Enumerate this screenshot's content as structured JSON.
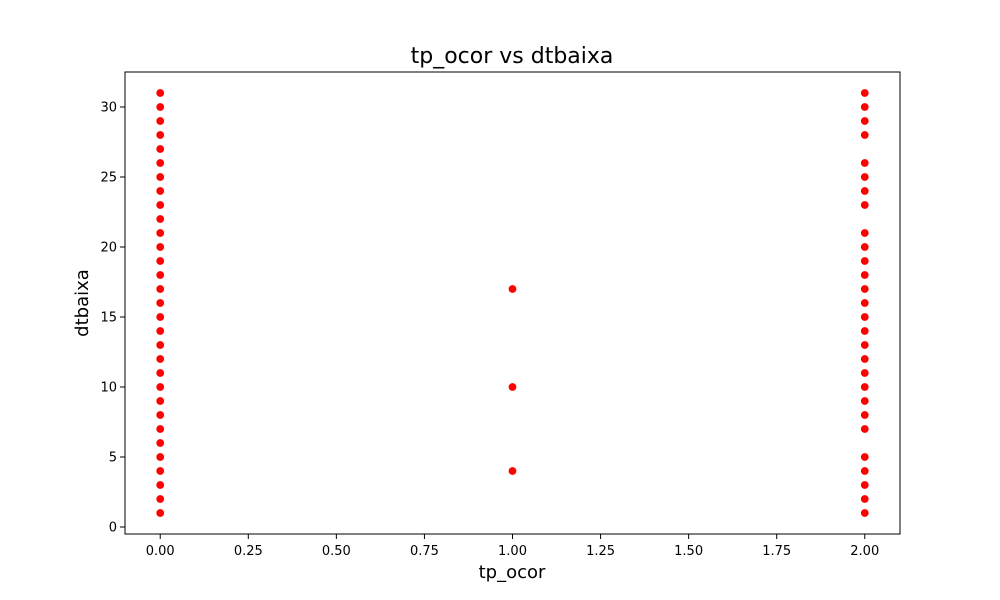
{
  "chart_data": {
    "type": "scatter",
    "title": "tp_ocor vs dtbaixa",
    "xlabel": "tp_ocor",
    "ylabel": "dtbaixa",
    "xlim": [
      -0.1,
      2.1
    ],
    "ylim": [
      -0.5,
      32.5
    ],
    "x_ticks": [
      "0.00",
      "0.25",
      "0.50",
      "0.75",
      "1.00",
      "1.25",
      "1.50",
      "1.75",
      "2.00"
    ],
    "y_ticks": [
      "0",
      "5",
      "10",
      "15",
      "20",
      "25",
      "30"
    ],
    "grid": false,
    "marker_color": "#ff0000",
    "series": [
      {
        "points": [
          [
            0,
            1
          ],
          [
            0,
            2
          ],
          [
            0,
            3
          ],
          [
            0,
            4
          ],
          [
            0,
            5
          ],
          [
            0,
            6
          ],
          [
            0,
            7
          ],
          [
            0,
            8
          ],
          [
            0,
            9
          ],
          [
            0,
            10
          ],
          [
            0,
            11
          ],
          [
            0,
            12
          ],
          [
            0,
            13
          ],
          [
            0,
            14
          ],
          [
            0,
            15
          ],
          [
            0,
            16
          ],
          [
            0,
            17
          ],
          [
            0,
            18
          ],
          [
            0,
            19
          ],
          [
            0,
            20
          ],
          [
            0,
            21
          ],
          [
            0,
            22
          ],
          [
            0,
            23
          ],
          [
            0,
            24
          ],
          [
            0,
            25
          ],
          [
            0,
            26
          ],
          [
            0,
            27
          ],
          [
            0,
            28
          ],
          [
            0,
            29
          ],
          [
            0,
            30
          ],
          [
            0,
            31
          ],
          [
            1,
            4
          ],
          [
            1,
            10
          ],
          [
            1,
            17
          ],
          [
            2,
            1
          ],
          [
            2,
            2
          ],
          [
            2,
            3
          ],
          [
            2,
            4
          ],
          [
            2,
            5
          ],
          [
            2,
            7
          ],
          [
            2,
            8
          ],
          [
            2,
            9
          ],
          [
            2,
            10
          ],
          [
            2,
            11
          ],
          [
            2,
            12
          ],
          [
            2,
            13
          ],
          [
            2,
            14
          ],
          [
            2,
            15
          ],
          [
            2,
            16
          ],
          [
            2,
            17
          ],
          [
            2,
            18
          ],
          [
            2,
            19
          ],
          [
            2,
            20
          ],
          [
            2,
            21
          ],
          [
            2,
            23
          ],
          [
            2,
            24
          ],
          [
            2,
            25
          ],
          [
            2,
            26
          ],
          [
            2,
            28
          ],
          [
            2,
            29
          ],
          [
            2,
            30
          ],
          [
            2,
            31
          ]
        ]
      }
    ]
  }
}
